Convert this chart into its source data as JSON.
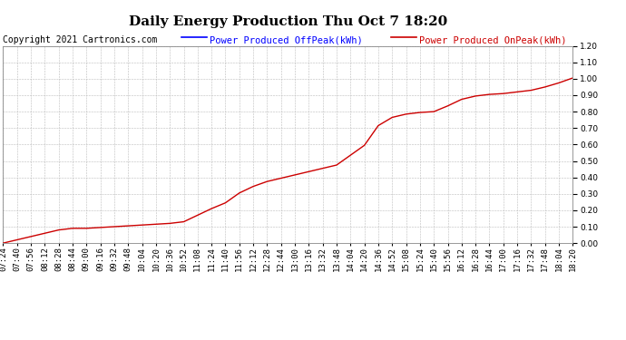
{
  "title": "Daily Energy Production Thu Oct 7 18:20",
  "copyright": "Copyright 2021 Cartronics.com",
  "legend_offpeak": "Power Produced OffPeak(kWh)",
  "legend_onpeak": "Power Produced OnPeak(kWh)",
  "offpeak_color": "#0000ff",
  "onpeak_color": "#cc0000",
  "ylim": [
    0.0,
    1.2
  ],
  "yticks": [
    0.0,
    0.1,
    0.2,
    0.3,
    0.4,
    0.5,
    0.6,
    0.7,
    0.8,
    0.9,
    1.0,
    1.1,
    1.2
  ],
  "background_color": "#ffffff",
  "grid_color": "#bbbbbb",
  "title_fontsize": 11,
  "legend_fontsize": 7.5,
  "copyright_fontsize": 7,
  "tick_fontsize": 6.5,
  "x_times": [
    "07:24",
    "07:40",
    "07:56",
    "08:12",
    "08:28",
    "08:44",
    "09:00",
    "09:16",
    "09:32",
    "09:48",
    "10:04",
    "10:20",
    "10:36",
    "10:52",
    "11:08",
    "11:24",
    "11:40",
    "11:56",
    "12:12",
    "12:28",
    "12:44",
    "13:00",
    "13:16",
    "13:32",
    "13:48",
    "14:04",
    "14:20",
    "14:36",
    "14:52",
    "15:08",
    "15:24",
    "15:40",
    "15:56",
    "16:12",
    "16:28",
    "16:44",
    "17:00",
    "17:16",
    "17:32",
    "17:48",
    "18:04",
    "18:20"
  ],
  "onpeak_values": [
    0.0,
    0.02,
    0.04,
    0.06,
    0.08,
    0.09,
    0.09,
    0.095,
    0.1,
    0.105,
    0.11,
    0.115,
    0.12,
    0.13,
    0.17,
    0.21,
    0.245,
    0.305,
    0.345,
    0.375,
    0.395,
    0.415,
    0.435,
    0.455,
    0.475,
    0.535,
    0.595,
    0.715,
    0.765,
    0.785,
    0.795,
    0.8,
    0.835,
    0.875,
    0.895,
    0.905,
    0.91,
    0.92,
    0.93,
    0.95,
    0.975,
    1.005
  ]
}
